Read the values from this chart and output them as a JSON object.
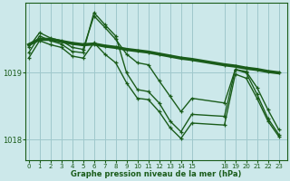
{
  "title": "Graphe pression niveau de la mer (hPa)",
  "background_color": "#cce8ea",
  "grid_color": "#9fc8cc",
  "line_color": "#1a5c1a",
  "marker": "+",
  "xticks": [
    0,
    1,
    2,
    3,
    4,
    5,
    6,
    7,
    8,
    9,
    10,
    11,
    12,
    13,
    14,
    15,
    18,
    19,
    20,
    21,
    22,
    23
  ],
  "yticks": [
    1018,
    1019
  ],
  "ylim": [
    1017.7,
    1020.05
  ],
  "xlim": [
    -0.3,
    23.8
  ],
  "series": [
    {
      "x": [
        0,
        1,
        2,
        3,
        4,
        5,
        6,
        7,
        8,
        9,
        10,
        11,
        12,
        13,
        14,
        15,
        18,
        19,
        20,
        21,
        22,
        23
      ],
      "y": [
        1019.42,
        1019.5,
        1019.5,
        1019.47,
        1019.44,
        1019.42,
        1019.43,
        1019.4,
        1019.38,
        1019.35,
        1019.33,
        1019.31,
        1019.28,
        1019.25,
        1019.22,
        1019.2,
        1019.12,
        1019.1,
        1019.07,
        1019.05,
        1019.02,
        1019.0
      ],
      "linewidth": 2.5
    },
    {
      "x": [
        0,
        1,
        2,
        3,
        4,
        5,
        6,
        7,
        8,
        9,
        10,
        11,
        12,
        13,
        14,
        15,
        18,
        19,
        20,
        21,
        22,
        23
      ],
      "y": [
        1019.38,
        1019.6,
        1019.52,
        1019.48,
        1019.38,
        1019.35,
        1019.85,
        1019.68,
        1019.5,
        1019.28,
        1019.15,
        1019.12,
        1018.88,
        1018.65,
        1018.42,
        1018.62,
        1018.55,
        1019.05,
        1019.02,
        1018.78,
        1018.45,
        1018.15
      ],
      "linewidth": 1.0
    },
    {
      "x": [
        0,
        1,
        2,
        3,
        4,
        5,
        6,
        7,
        8,
        9,
        10,
        11,
        12,
        13,
        14,
        15,
        18,
        19,
        20,
        21,
        22,
        23
      ],
      "y": [
        1019.3,
        1019.55,
        1019.48,
        1019.43,
        1019.32,
        1019.3,
        1019.9,
        1019.72,
        1019.55,
        1019.0,
        1018.75,
        1018.72,
        1018.55,
        1018.28,
        1018.12,
        1018.38,
        1018.35,
        1019.05,
        1019.0,
        1018.68,
        1018.32,
        1018.08
      ],
      "linewidth": 1.0
    },
    {
      "x": [
        0,
        1,
        2,
        3,
        4,
        5,
        6,
        7,
        8,
        9,
        10,
        11,
        12,
        13,
        14,
        15,
        18,
        19,
        20,
        21,
        22,
        23
      ],
      "y": [
        1019.22,
        1019.48,
        1019.42,
        1019.38,
        1019.25,
        1019.22,
        1019.45,
        1019.28,
        1019.15,
        1018.85,
        1018.62,
        1018.6,
        1018.42,
        1018.18,
        1018.02,
        1018.25,
        1018.22,
        1018.98,
        1018.92,
        1018.62,
        1018.28,
        1018.05
      ],
      "linewidth": 1.0
    }
  ]
}
